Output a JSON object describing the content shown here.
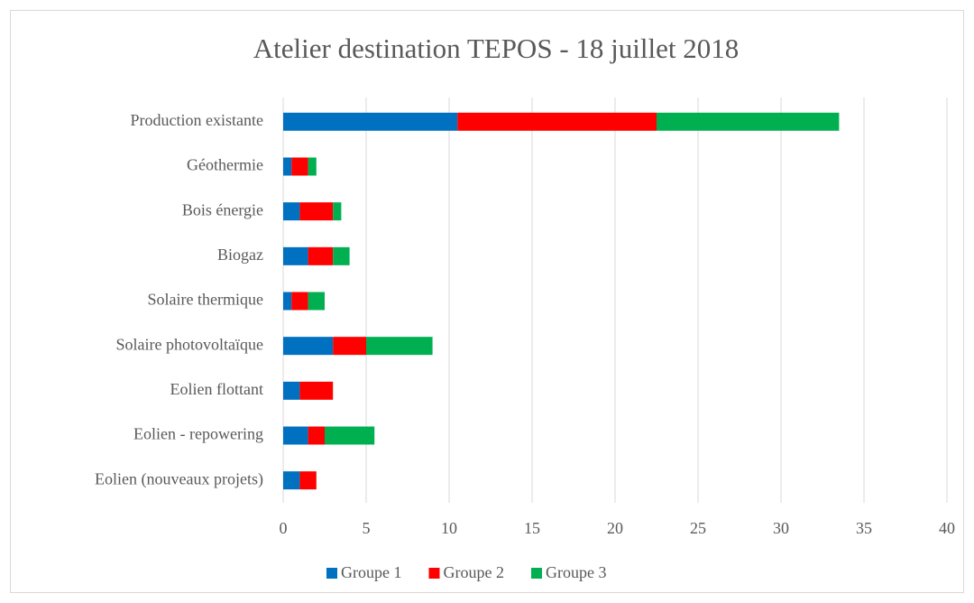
{
  "chart_data": {
    "type": "stacked-barh",
    "title": "Atelier destination TEPOS - 18 juillet 2018",
    "categories": [
      "Production existante",
      "Géothermie",
      "Bois énergie",
      "Biogaz",
      "Solaire thermique",
      "Solaire photovoltaïque",
      "Eolien flottant",
      "Eolien - repowering",
      "Eolien (nouveaux projets)"
    ],
    "series": [
      {
        "name": "Groupe 1",
        "color": "#0070c0",
        "values": [
          10.5,
          0.5,
          1,
          1.5,
          0.5,
          3,
          1,
          1.5,
          1
        ]
      },
      {
        "name": "Groupe 2",
        "color": "#ff0000",
        "values": [
          12,
          1,
          2,
          1.5,
          1,
          2,
          2,
          1,
          1
        ]
      },
      {
        "name": "Groupe 3",
        "color": "#00b050",
        "values": [
          11,
          0.5,
          0.5,
          1,
          1,
          4,
          0,
          3,
          0
        ]
      }
    ],
    "xlim": [
      0,
      40
    ],
    "xticks": [
      0,
      5,
      10,
      15,
      20,
      25,
      30,
      35,
      40
    ],
    "grid": true,
    "legend": "bottom"
  }
}
